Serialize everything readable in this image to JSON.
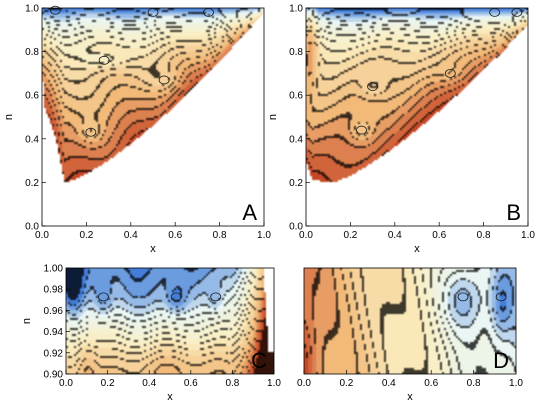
{
  "chart_data": [
    {
      "type": "contour",
      "panel_label": "A",
      "xlabel": "x",
      "ylabel": "n",
      "xlim": [
        0.0,
        1.0
      ],
      "ylim": [
        0.0,
        1.0
      ],
      "xticks": [
        "0.0",
        "0.2",
        "0.4",
        "0.6",
        "0.8",
        "1.0"
      ],
      "yticks": [
        "0.0",
        "0.2",
        "0.4",
        "0.6",
        "0.8",
        "1.0"
      ],
      "colormap": [
        "#c0391b",
        "#f2b979",
        "#fbeec0",
        "#e9f6f4",
        "#2e6fd6"
      ],
      "minima": [
        [
          0.22,
          0.43
        ],
        [
          0.55,
          0.67
        ],
        [
          0.28,
          0.76
        ],
        [
          0.06,
          0.99
        ],
        [
          0.5,
          0.98
        ],
        [
          0.75,
          0.98
        ]
      ]
    },
    {
      "type": "contour",
      "panel_label": "B",
      "xlabel": "x",
      "ylabel": "n",
      "xlim": [
        0.0,
        1.0
      ],
      "ylim": [
        0.0,
        1.0
      ],
      "xticks": [
        "0.0",
        "0.2",
        "0.4",
        "0.6",
        "0.8",
        "1.0"
      ],
      "yticks": [
        "0.0",
        "0.2",
        "0.4",
        "0.6",
        "0.8",
        "1.0"
      ],
      "colormap": [
        "#c0391b",
        "#f2b979",
        "#fbeec0",
        "#e9f6f4",
        "#2e6fd6"
      ],
      "minima": [
        [
          0.25,
          0.44
        ],
        [
          0.3,
          0.64
        ],
        [
          0.65,
          0.7
        ],
        [
          0.85,
          0.98
        ],
        [
          0.95,
          0.98
        ]
      ]
    },
    {
      "type": "contour",
      "panel_label": "C",
      "xlabel": "x",
      "ylabel": "n",
      "xlim": [
        0.0,
        1.0
      ],
      "ylim": [
        0.89,
        1.0
      ],
      "xticks": [
        "0.0",
        "0.2",
        "0.4",
        "0.6",
        "0.8",
        "1.0"
      ],
      "yticks": [
        "0.90",
        "0.92",
        "0.94",
        "0.96",
        "0.98",
        "1.00"
      ],
      "colormap": [
        "#c0391b",
        "#f2b979",
        "#fbeec0",
        "#e9f6f4",
        "#2e6fd6"
      ],
      "minima": [
        [
          0.03,
          0.975
        ],
        [
          0.18,
          0.97
        ],
        [
          0.53,
          0.97
        ],
        [
          0.72,
          0.97
        ]
      ]
    },
    {
      "type": "contour",
      "panel_label": "D",
      "xlabel": "x",
      "ylabel": "",
      "xlim": [
        0.0,
        1.0
      ],
      "ylim": [
        0.89,
        1.0
      ],
      "xticks": [
        "0.0",
        "0.2",
        "0.4",
        "0.6",
        "0.8",
        "1.0"
      ],
      "yticks": [],
      "colormap": [
        "#c0391b",
        "#f2b979",
        "#fbeec0",
        "#e9f6f4",
        "#2e6fd6"
      ],
      "minima": [
        [
          0.75,
          0.97
        ],
        [
          0.93,
          0.97
        ]
      ]
    }
  ]
}
